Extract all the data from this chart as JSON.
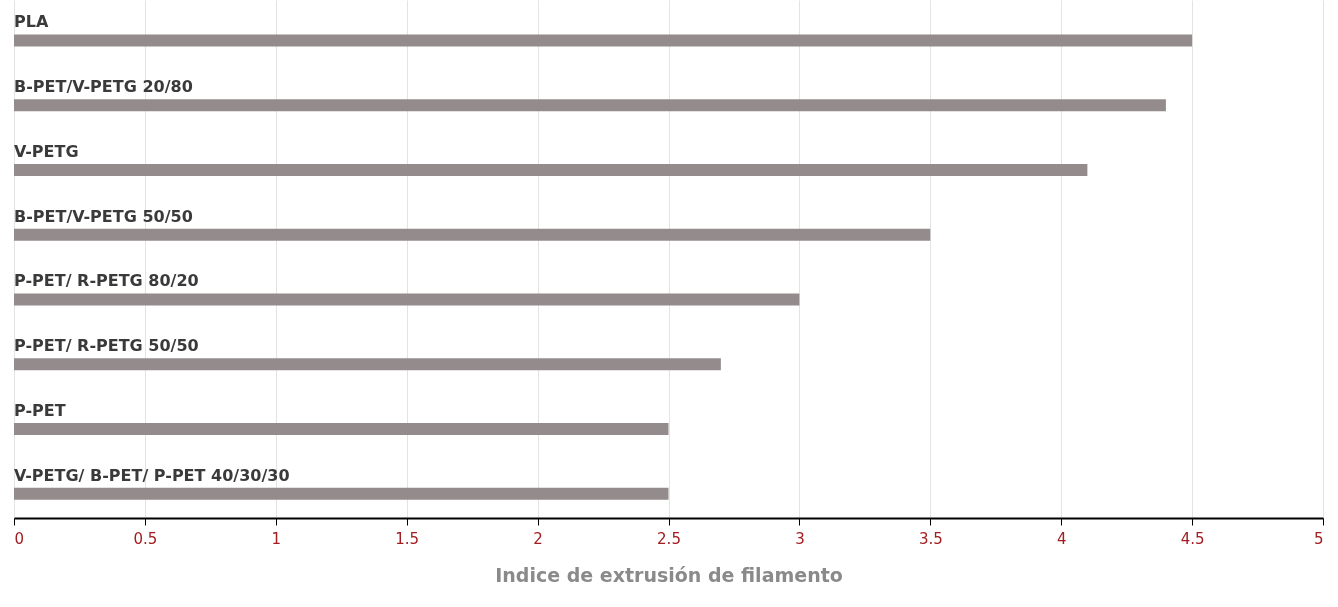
{
  "chart_data": {
    "type": "bar",
    "orientation": "horizontal",
    "xlabel": "Indice de extrusión de filamento",
    "categories": [
      "PLA",
      "B-PET/V-PETG 20/80",
      "V-PETG",
      "B-PET/V-PETG 50/50",
      "P-PET/ R-PETG 80/20",
      "P-PET/ R-PETG 50/50",
      "P-PET",
      "V-PETG/ B-PET/ P-PET 40/30/30"
    ],
    "values": [
      4.5,
      4.4,
      4.1,
      3.5,
      3.0,
      2.7,
      2.5,
      2.5
    ],
    "color": "#948c8c",
    "xlim": [
      0,
      5
    ],
    "xticks": [
      0,
      0.5,
      1,
      1.5,
      2,
      2.5,
      3,
      3.5,
      4,
      4.5,
      5
    ],
    "grid": "x"
  }
}
